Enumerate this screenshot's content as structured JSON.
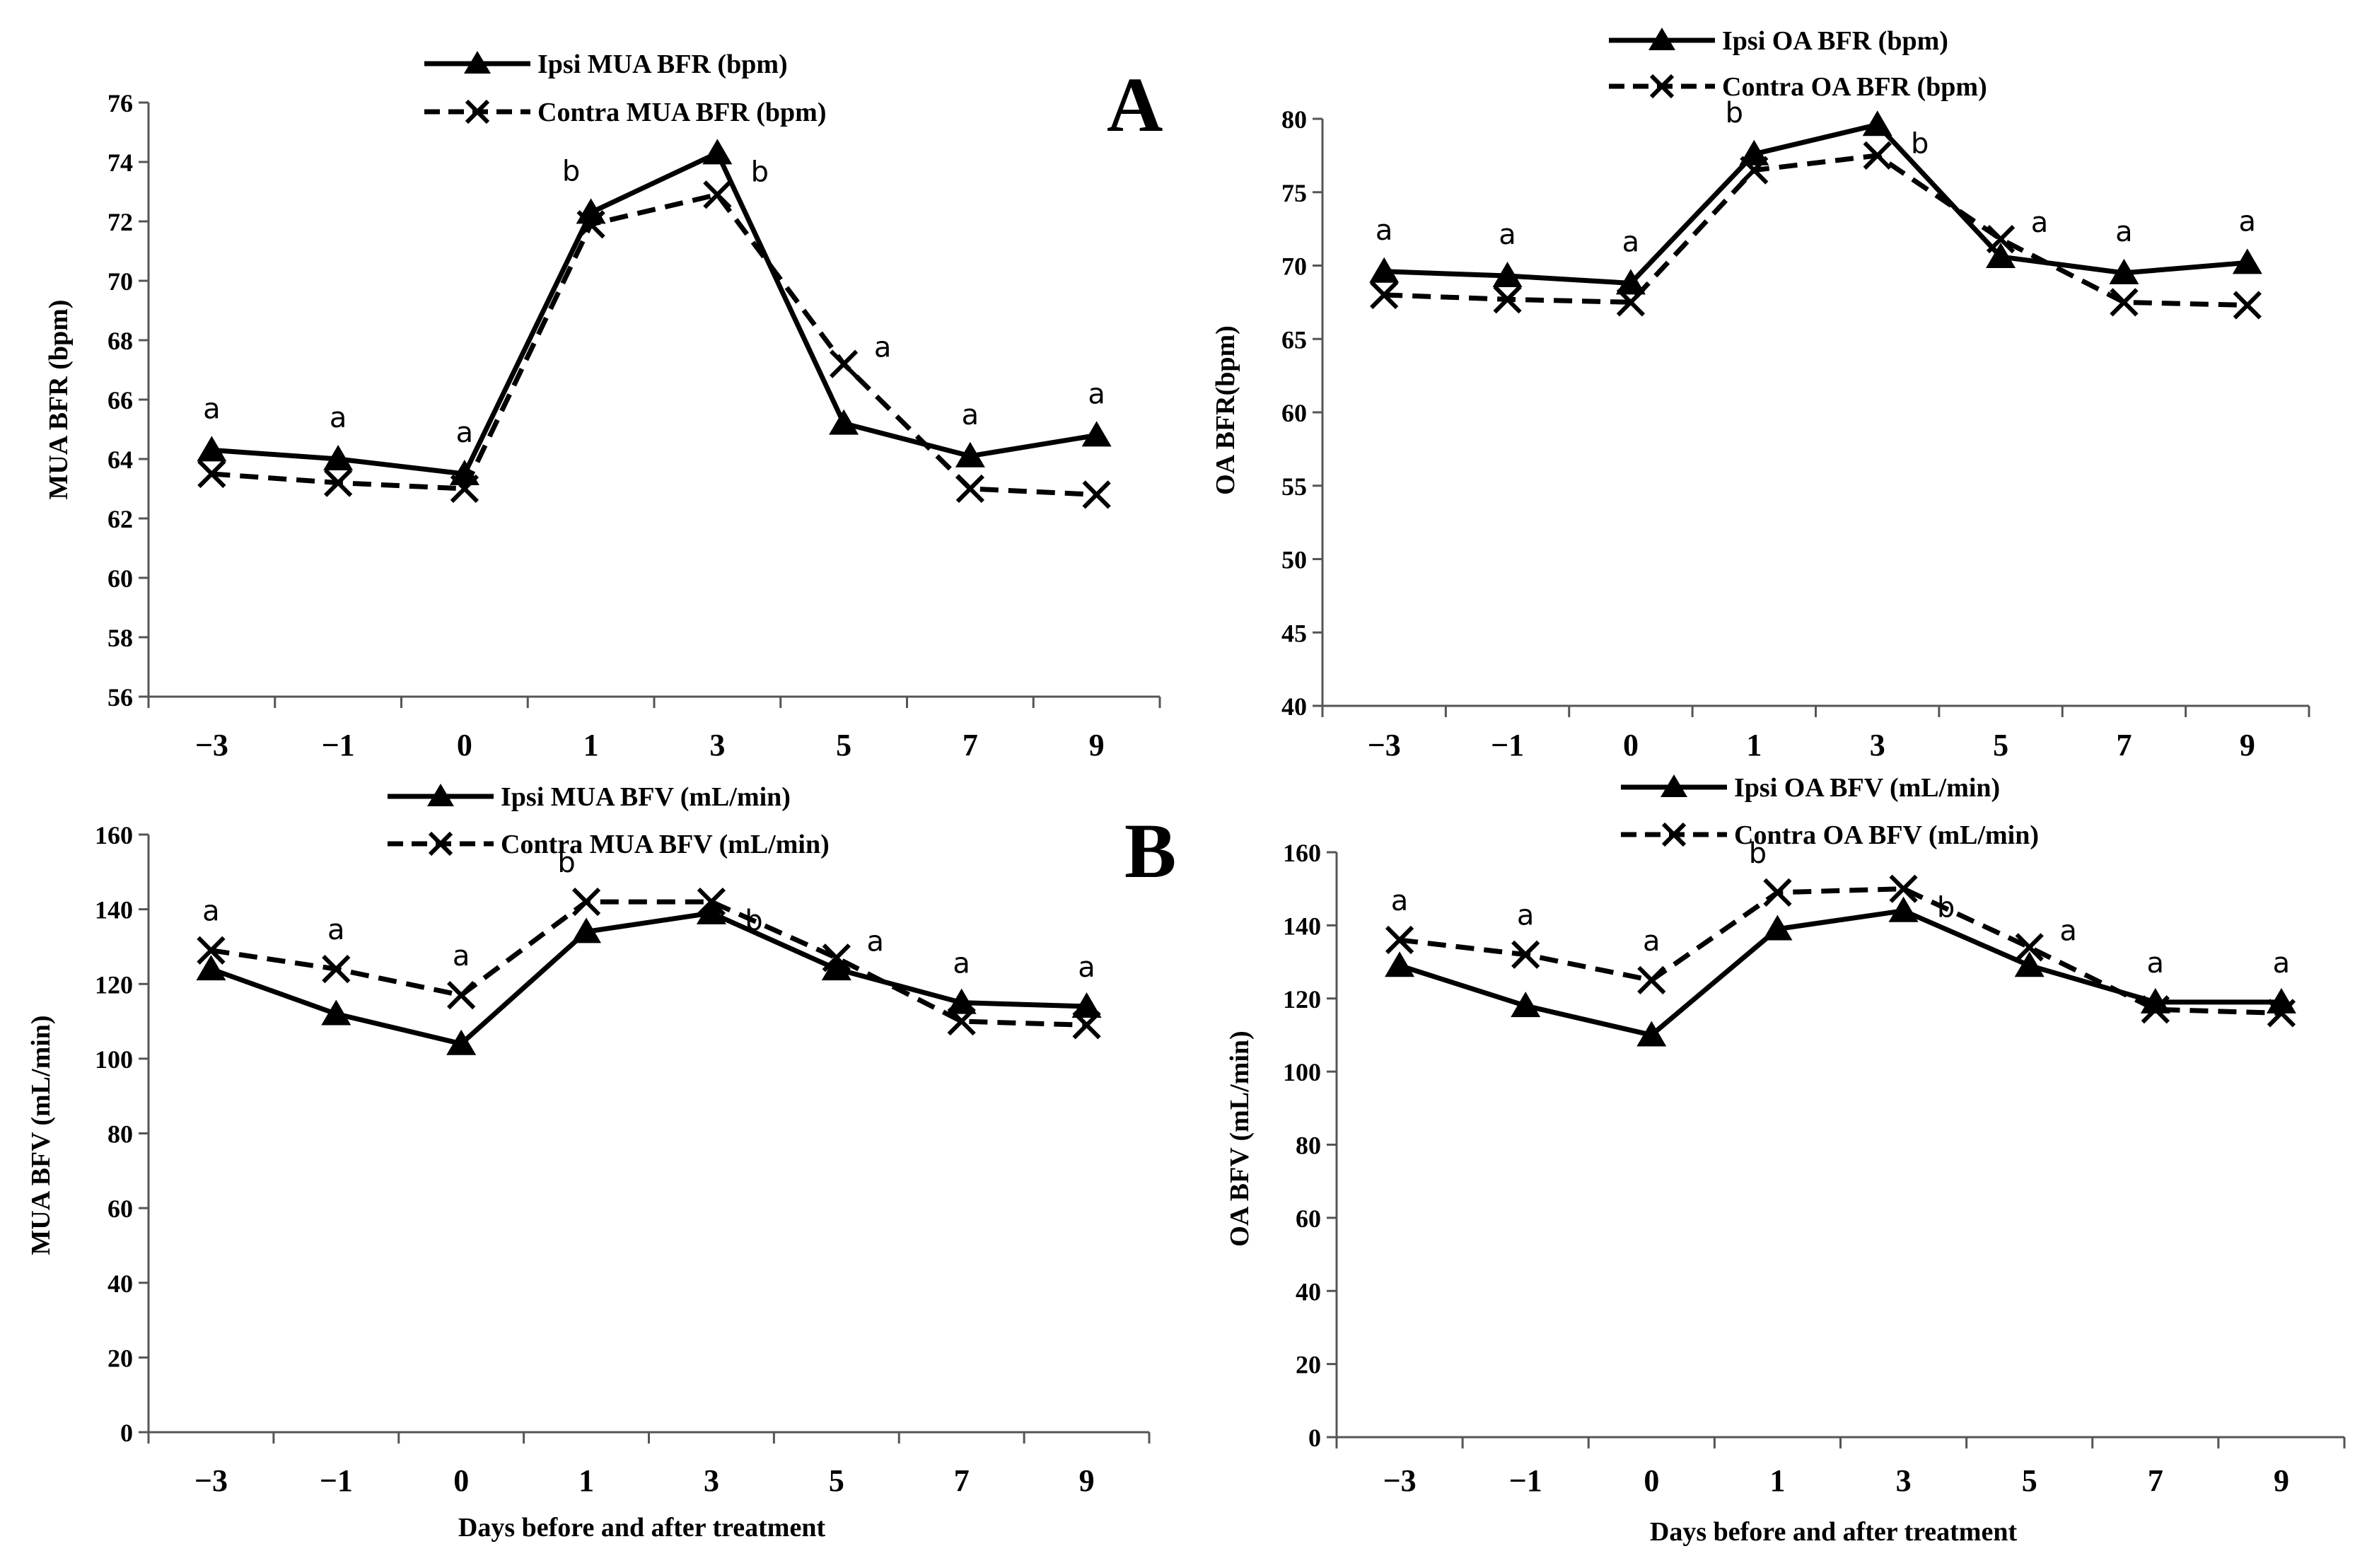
{
  "figure": {
    "panel_labels": [
      "A",
      "B"
    ]
  },
  "chart_data": [
    {
      "type": "line",
      "categories": [
        "−3",
        "−1",
        "0",
        "1",
        "3",
        "5",
        "7",
        "9"
      ],
      "ylabel": "MUA BFR (bpm)",
      "xlabel": "",
      "ylim": [
        56,
        76
      ],
      "yticks": [
        56,
        58,
        60,
        62,
        64,
        66,
        68,
        70,
        72,
        74,
        76
      ],
      "series": [
        {
          "name": "Ipsi MUA BFR (bpm)",
          "style": "solid",
          "marker": "triangle",
          "values": [
            64.3,
            64.0,
            63.5,
            72.3,
            74.3,
            65.2,
            64.1,
            64.8
          ]
        },
        {
          "name": "Contra MUA BFR (bpm)",
          "style": "dashed",
          "marker": "x",
          "values": [
            63.5,
            63.2,
            63.0,
            71.9,
            72.9,
            67.2,
            63.0,
            62.8
          ]
        }
      ],
      "annotations": [
        "a",
        "a",
        "a",
        "b",
        "b",
        "a",
        "a",
        "a"
      ],
      "legend_position": "top-center",
      "color": "#000000"
    },
    {
      "type": "line",
      "categories": [
        "−3",
        "−1",
        "0",
        "1",
        "3",
        "5",
        "7",
        "9"
      ],
      "ylabel": "OA BFR(bpm)",
      "xlabel": "",
      "ylim": [
        40,
        80
      ],
      "yticks": [
        40,
        45,
        50,
        55,
        60,
        65,
        70,
        75,
        80
      ],
      "series": [
        {
          "name": "Ipsi OA BFR (bpm)",
          "style": "solid",
          "marker": "triangle",
          "values": [
            69.6,
            69.3,
            68.8,
            77.6,
            79.6,
            70.6,
            69.5,
            70.2
          ]
        },
        {
          "name": "Contra OA BFR (bpm)",
          "style": "dashed",
          "marker": "x",
          "values": [
            68.0,
            67.7,
            67.5,
            76.5,
            77.5,
            71.8,
            67.5,
            67.3
          ]
        }
      ],
      "annotations": [
        "a",
        "a",
        "a",
        "b",
        "b",
        "a",
        "a",
        "a"
      ],
      "legend_position": "top-center",
      "color": "#000000"
    },
    {
      "type": "line",
      "categories": [
        "−3",
        "−1",
        "0",
        "1",
        "3",
        "5",
        "7",
        "9"
      ],
      "ylabel": "MUA BFV (mL/min)",
      "xlabel": "Days before and after treatment",
      "ylim": [
        0,
        160
      ],
      "yticks": [
        0,
        20,
        40,
        60,
        80,
        100,
        120,
        140,
        160
      ],
      "series": [
        {
          "name": "Ipsi MUA BFV (mL/min)",
          "style": "solid",
          "marker": "triangle",
          "values": [
            124,
            112,
            104,
            134,
            139,
            124,
            115,
            114
          ]
        },
        {
          "name": "Contra MUA BFV (mL/min)",
          "style": "dashed",
          "marker": "x",
          "values": [
            129,
            124,
            117,
            142,
            142,
            127,
            110,
            109
          ]
        }
      ],
      "annotations": [
        "a",
        "a",
        "a",
        "b",
        "b",
        "a",
        "a",
        "a"
      ],
      "legend_position": "top-center",
      "color": "#000000"
    },
    {
      "type": "line",
      "categories": [
        "−3",
        "−1",
        "0",
        "1",
        "3",
        "5",
        "7",
        "9"
      ],
      "ylabel": "OA BFV (mL/min)",
      "xlabel": "Days before and after treatment",
      "ylim": [
        0,
        160
      ],
      "yticks": [
        0,
        20,
        40,
        60,
        80,
        100,
        120,
        140,
        160
      ],
      "series": [
        {
          "name": "Ipsi OA BFV (mL/min)",
          "style": "solid",
          "marker": "triangle",
          "values": [
            129,
            118,
            110,
            139,
            144,
            129,
            119,
            119
          ]
        },
        {
          "name": "Contra OA BFV (mL/min)",
          "style": "dashed",
          "marker": "x",
          "values": [
            136,
            132,
            125,
            149,
            150,
            134,
            117,
            116
          ]
        }
      ],
      "annotations": [
        "a",
        "a",
        "a",
        "b",
        "b",
        "a",
        "a",
        "a"
      ],
      "legend_position": "top-center",
      "color": "#000000"
    }
  ]
}
